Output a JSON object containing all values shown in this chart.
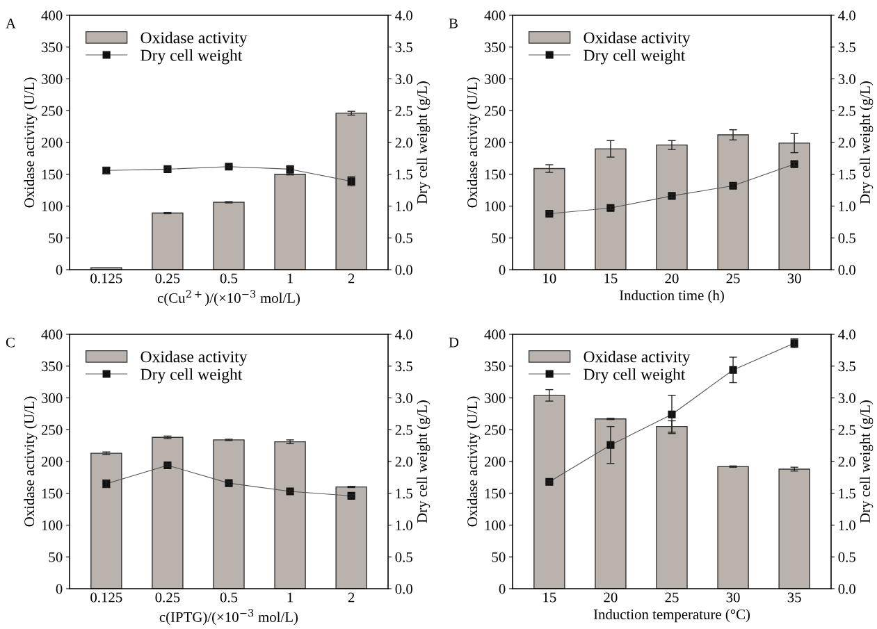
{
  "chart_data": [
    {
      "type": "bar",
      "title": "A",
      "xlabel": "c(Cu$^{2+}$)/(×10$^{−3}$ mol/L)",
      "ylabel": "Oxidase activity (U/L)",
      "y2label": "Dry cell weight (g/L)",
      "categories": [
        "0.125",
        "0.25",
        "0.5",
        "1",
        "2"
      ],
      "ylim": [
        0,
        400
      ],
      "yticks": [
        0,
        50,
        100,
        150,
        200,
        250,
        300,
        350,
        400
      ],
      "y2lim": [
        0,
        4
      ],
      "y2ticks": [
        {
          "value": 0,
          "label": "0.0"
        },
        {
          "value": 0.5,
          "label": "0.5"
        },
        {
          "value": 1,
          "label": "1.0"
        },
        {
          "value": 1.5,
          "label": "1.5"
        },
        {
          "value": 2,
          "label": "2.0"
        },
        {
          "value": 2.5,
          "label": "2.5"
        },
        {
          "value": 3,
          "label": "3.0"
        },
        {
          "value": 3.5,
          "label": "3.5"
        },
        {
          "value": 4,
          "label": "4.0"
        }
      ],
      "legend": "top left",
      "series": [
        {
          "name": "Oxidase activity",
          "color": "#bab2ad",
          "values": [
            3,
            89,
            106,
            150,
            246
          ],
          "errors": [
            null,
            1,
            1,
            1,
            3
          ]
        },
        {
          "name": "Dry cell weight",
          "type": "line",
          "axis": "y2",
          "color": "#111111",
          "marker": "square",
          "values": [
            1.56,
            1.58,
            1.62,
            1.58,
            1.39
          ],
          "errors": [
            0.05,
            0.03,
            0.02,
            0.04,
            0.07
          ]
        }
      ]
    },
    {
      "type": "bar",
      "title": "B",
      "xlabel": "Induction time (h)",
      "ylabel": "Oxidase activity (U/L)",
      "y2label": "Dry cell weight (g/L)",
      "categories": [
        "10",
        "15",
        "20",
        "25",
        "30"
      ],
      "ylim": [
        0,
        400
      ],
      "yticks": [
        0,
        50,
        100,
        150,
        200,
        250,
        300,
        350,
        400
      ],
      "y2lim": [
        0,
        4
      ],
      "y2ticks": [
        {
          "value": 0,
          "label": "0.0"
        },
        {
          "value": 0.5,
          "label": "0.5"
        },
        {
          "value": 1,
          "label": "1.0"
        },
        {
          "value": 1.5,
          "label": "1.5"
        },
        {
          "value": 2,
          "label": "2.0"
        },
        {
          "value": 2.5,
          "label": "2.5"
        },
        {
          "value": 3,
          "label": "3.0"
        },
        {
          "value": 3.5,
          "label": "3.5"
        },
        {
          "value": 4,
          "label": "4.0"
        }
      ],
      "legend": "top left",
      "series": [
        {
          "name": "Oxidase activity",
          "color": "#bab2ad",
          "values": [
            159,
            190,
            196,
            212,
            199
          ],
          "errors": [
            6,
            13,
            7,
            8,
            15
          ]
        },
        {
          "name": "Dry cell weight",
          "type": "line",
          "axis": "y2",
          "color": "#111111",
          "marker": "square",
          "values": [
            0.88,
            0.97,
            1.16,
            1.32,
            1.66
          ],
          "errors": [
            0.03,
            0.02,
            0.03,
            0.03,
            0.03
          ]
        }
      ]
    },
    {
      "type": "bar",
      "title": "C",
      "xlabel": "c(IPTG)/(×10$^{−3}$ mol/L)",
      "ylabel": "Oxidase activity (U/L)",
      "y2label": "Dry cell weight (g/L)",
      "categories": [
        "0.125",
        "0.25",
        "0.5",
        "1",
        "2"
      ],
      "ylim": [
        0,
        400
      ],
      "yticks": [
        0,
        50,
        100,
        150,
        200,
        250,
        300,
        350,
        400
      ],
      "y2lim": [
        0,
        4
      ],
      "y2ticks": [
        {
          "value": 0,
          "label": "0.0"
        },
        {
          "value": 0.5,
          "label": "0.5"
        },
        {
          "value": 1,
          "label": "1.0"
        },
        {
          "value": 1.5,
          "label": "1.5"
        },
        {
          "value": 2,
          "label": "2.0"
        },
        {
          "value": 2.5,
          "label": "2.5"
        },
        {
          "value": 3,
          "label": "3.0"
        },
        {
          "value": 3.5,
          "label": "3.5"
        },
        {
          "value": 4,
          "label": "4.0"
        }
      ],
      "legend": "top left",
      "series": [
        {
          "name": "Oxidase activity",
          "color": "#bab2ad",
          "values": [
            213,
            238,
            234,
            231,
            160
          ],
          "errors": [
            2,
            2,
            1,
            3,
            1
          ]
        },
        {
          "name": "Dry cell weight",
          "type": "line",
          "axis": "y2",
          "color": "#111111",
          "marker": "square",
          "values": [
            1.65,
            1.94,
            1.66,
            1.53,
            1.46
          ],
          "errors": [
            0.06,
            0.02,
            0.02,
            0.02,
            0.02
          ]
        }
      ]
    },
    {
      "type": "bar",
      "title": "D",
      "xlabel": "Induction temperature (°C)",
      "ylabel": "Oxidase activity (U/L)",
      "y2label": "Dry cell weight (g/L)",
      "categories": [
        "15",
        "20",
        "25",
        "30",
        "35"
      ],
      "ylim": [
        0,
        400
      ],
      "yticks": [
        0,
        50,
        100,
        150,
        200,
        250,
        300,
        350,
        400
      ],
      "y2lim": [
        0,
        4
      ],
      "y2ticks": [
        {
          "value": 0,
          "label": "0.0"
        },
        {
          "value": 0.5,
          "label": "0.5"
        },
        {
          "value": 1,
          "label": "1.0"
        },
        {
          "value": 1.5,
          "label": "1.5"
        },
        {
          "value": 2,
          "label": "2.0"
        },
        {
          "value": 2.5,
          "label": "2.5"
        },
        {
          "value": 3,
          "label": "3.0"
        },
        {
          "value": 3.5,
          "label": "3.5"
        },
        {
          "value": 4,
          "label": "4.0"
        }
      ],
      "legend": "top left",
      "series": [
        {
          "name": "Oxidase activity",
          "color": "#bab2ad",
          "values": [
            304,
            267,
            255,
            192,
            188
          ],
          "errors": [
            9,
            1,
            9,
            1,
            3
          ]
        },
        {
          "name": "Dry cell weight",
          "type": "line",
          "axis": "y2",
          "color": "#111111",
          "marker": "square",
          "values": [
            1.68,
            2.26,
            2.74,
            3.44,
            3.86
          ],
          "errors": [
            0.02,
            0.29,
            0.3,
            0.2,
            0.07
          ]
        }
      ]
    }
  ]
}
